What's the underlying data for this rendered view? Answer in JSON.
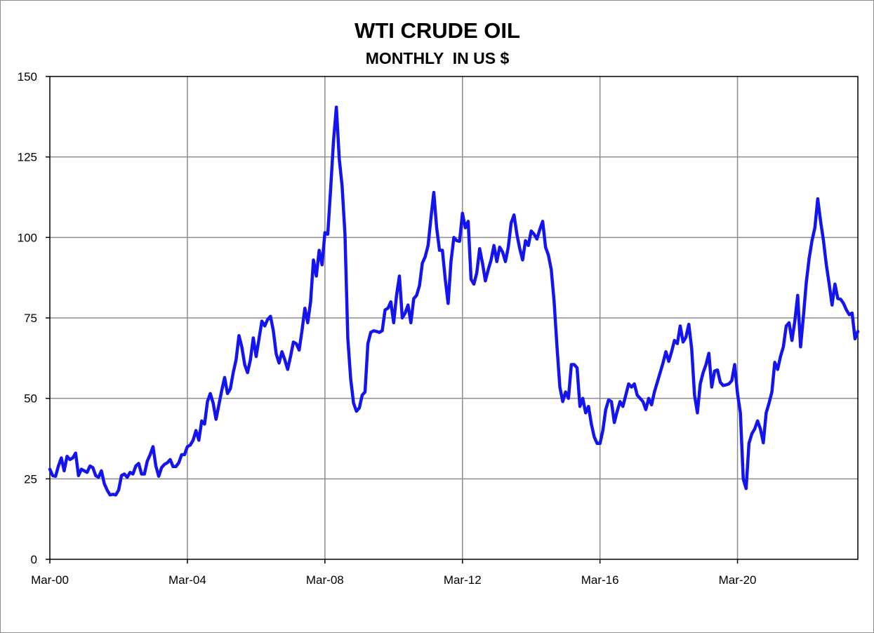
{
  "chart_data": {
    "type": "line",
    "title": "WTI CRUDE OIL",
    "subtitle": "MONTHLY  IN US $",
    "xlabel": "",
    "ylabel": "",
    "x_tick_labels": [
      "Mar-00",
      "Mar-04",
      "Mar-08",
      "Mar-12",
      "Mar-16",
      "Mar-20"
    ],
    "y_tick_labels": [
      "0",
      "25",
      "50",
      "75",
      "100",
      "125",
      "150"
    ],
    "ylim": [
      0,
      150
    ],
    "x_start": "Mar-00",
    "x_end": "Jun-23",
    "grid": true,
    "legend": "none",
    "series_color": "#1414F0",
    "grid_color": "#8C8C8C",
    "series": [
      {
        "values": [
          28.0,
          26.0,
          25.8,
          29.0,
          31.5,
          27.5,
          32.0,
          31.0,
          31.5,
          33.0,
          26.0,
          28.0,
          27.5,
          27.0,
          29.0,
          28.5,
          26.0,
          25.5,
          27.5,
          23.5,
          21.5,
          20.0,
          20.2,
          20.0,
          21.5,
          26.0,
          26.5,
          25.5,
          27.0,
          26.5,
          29.0,
          29.8,
          26.5,
          26.5,
          30.5,
          32.5,
          35.0,
          29.0,
          25.8,
          28.5,
          29.5,
          30.0,
          31.0,
          28.8,
          28.8,
          30.0,
          32.5,
          32.5,
          35.0,
          35.5,
          37.0,
          40.0,
          37.0,
          43.0,
          42.0,
          49.0,
          51.5,
          48.5,
          43.5,
          48.0,
          52.5,
          56.5,
          51.5,
          53.0,
          58.0,
          62.0,
          69.5,
          66.0,
          60.5,
          58.0,
          62.0,
          68.8,
          63.0,
          68.5,
          74.0,
          72.5,
          74.5,
          75.5,
          71.0,
          63.8,
          61.0,
          64.5,
          62.0,
          59.0,
          63.0,
          67.5,
          67.0,
          65.0,
          71.0,
          78.0,
          73.5,
          80.0,
          93.0,
          88.0,
          96.0,
          91.5,
          101.5,
          101.0,
          115.0,
          130.0,
          140.5,
          124.5,
          116.0,
          101.0,
          68.5,
          56.0,
          48.5,
          46.0,
          47.0,
          51.0,
          52.0,
          67.0,
          70.5,
          71.0,
          70.8,
          70.5,
          71.0,
          77.5,
          78.0,
          80.0,
          73.5,
          82.0,
          88.0,
          75.0,
          76.5,
          79.0,
          73.5,
          81.0,
          82.0,
          85.0,
          92.0,
          94.0,
          97.5,
          106.0,
          114.0,
          103.0,
          96.0,
          96.0,
          87.0,
          79.5,
          92.5,
          100.0,
          99.0,
          98.8,
          107.5,
          103.0,
          105.0,
          87.0,
          85.5,
          89.0,
          96.5,
          92.0,
          86.5,
          90.0,
          93.0,
          97.5,
          92.5,
          97.0,
          95.5,
          92.5,
          97.0,
          104.5,
          107.0,
          101.0,
          96.5,
          93.0,
          99.0,
          97.5,
          102.0,
          101.0,
          99.5,
          102.5,
          105.0,
          97.0,
          94.5,
          90.0,
          80.0,
          66.0,
          53.5,
          49.0,
          52.0,
          50.0,
          60.5,
          60.5,
          59.5,
          47.5,
          50.0,
          45.5,
          47.5,
          42.0,
          38.0,
          36.0,
          36.0,
          40.0,
          46.5,
          49.5,
          49.0,
          42.5,
          46.0,
          49.0,
          47.5,
          51.0,
          54.5,
          53.5,
          54.5,
          51.0,
          50.0,
          49.0,
          46.5,
          50.0,
          48.0,
          52.0,
          55.0,
          58.0,
          61.0,
          64.5,
          61.5,
          64.5,
          68.0,
          67.0,
          72.5,
          67.5,
          69.0,
          73.0,
          65.5,
          51.0,
          45.5,
          54.5,
          58.0,
          60.5,
          64.0,
          53.5,
          58.5,
          58.8,
          55.0,
          54.0,
          54.2,
          54.5,
          55.5,
          60.5,
          51.5,
          45.5,
          25.0,
          22.0,
          36.0,
          39.0,
          40.5,
          43.0,
          40.5,
          36.2,
          45.5,
          48.5,
          52.0,
          61.2,
          59.0,
          63.0,
          66.0,
          72.5,
          73.5,
          68.0,
          74.0,
          82.0,
          66.0,
          75.5,
          86.0,
          93.5,
          99.0,
          103.0,
          112.0,
          105.0,
          99.0,
          91.5,
          85.5,
          79.0,
          85.5,
          81.0,
          80.8,
          79.5,
          77.5,
          76.0,
          76.5,
          68.5,
          70.8
        ]
      }
    ]
  }
}
